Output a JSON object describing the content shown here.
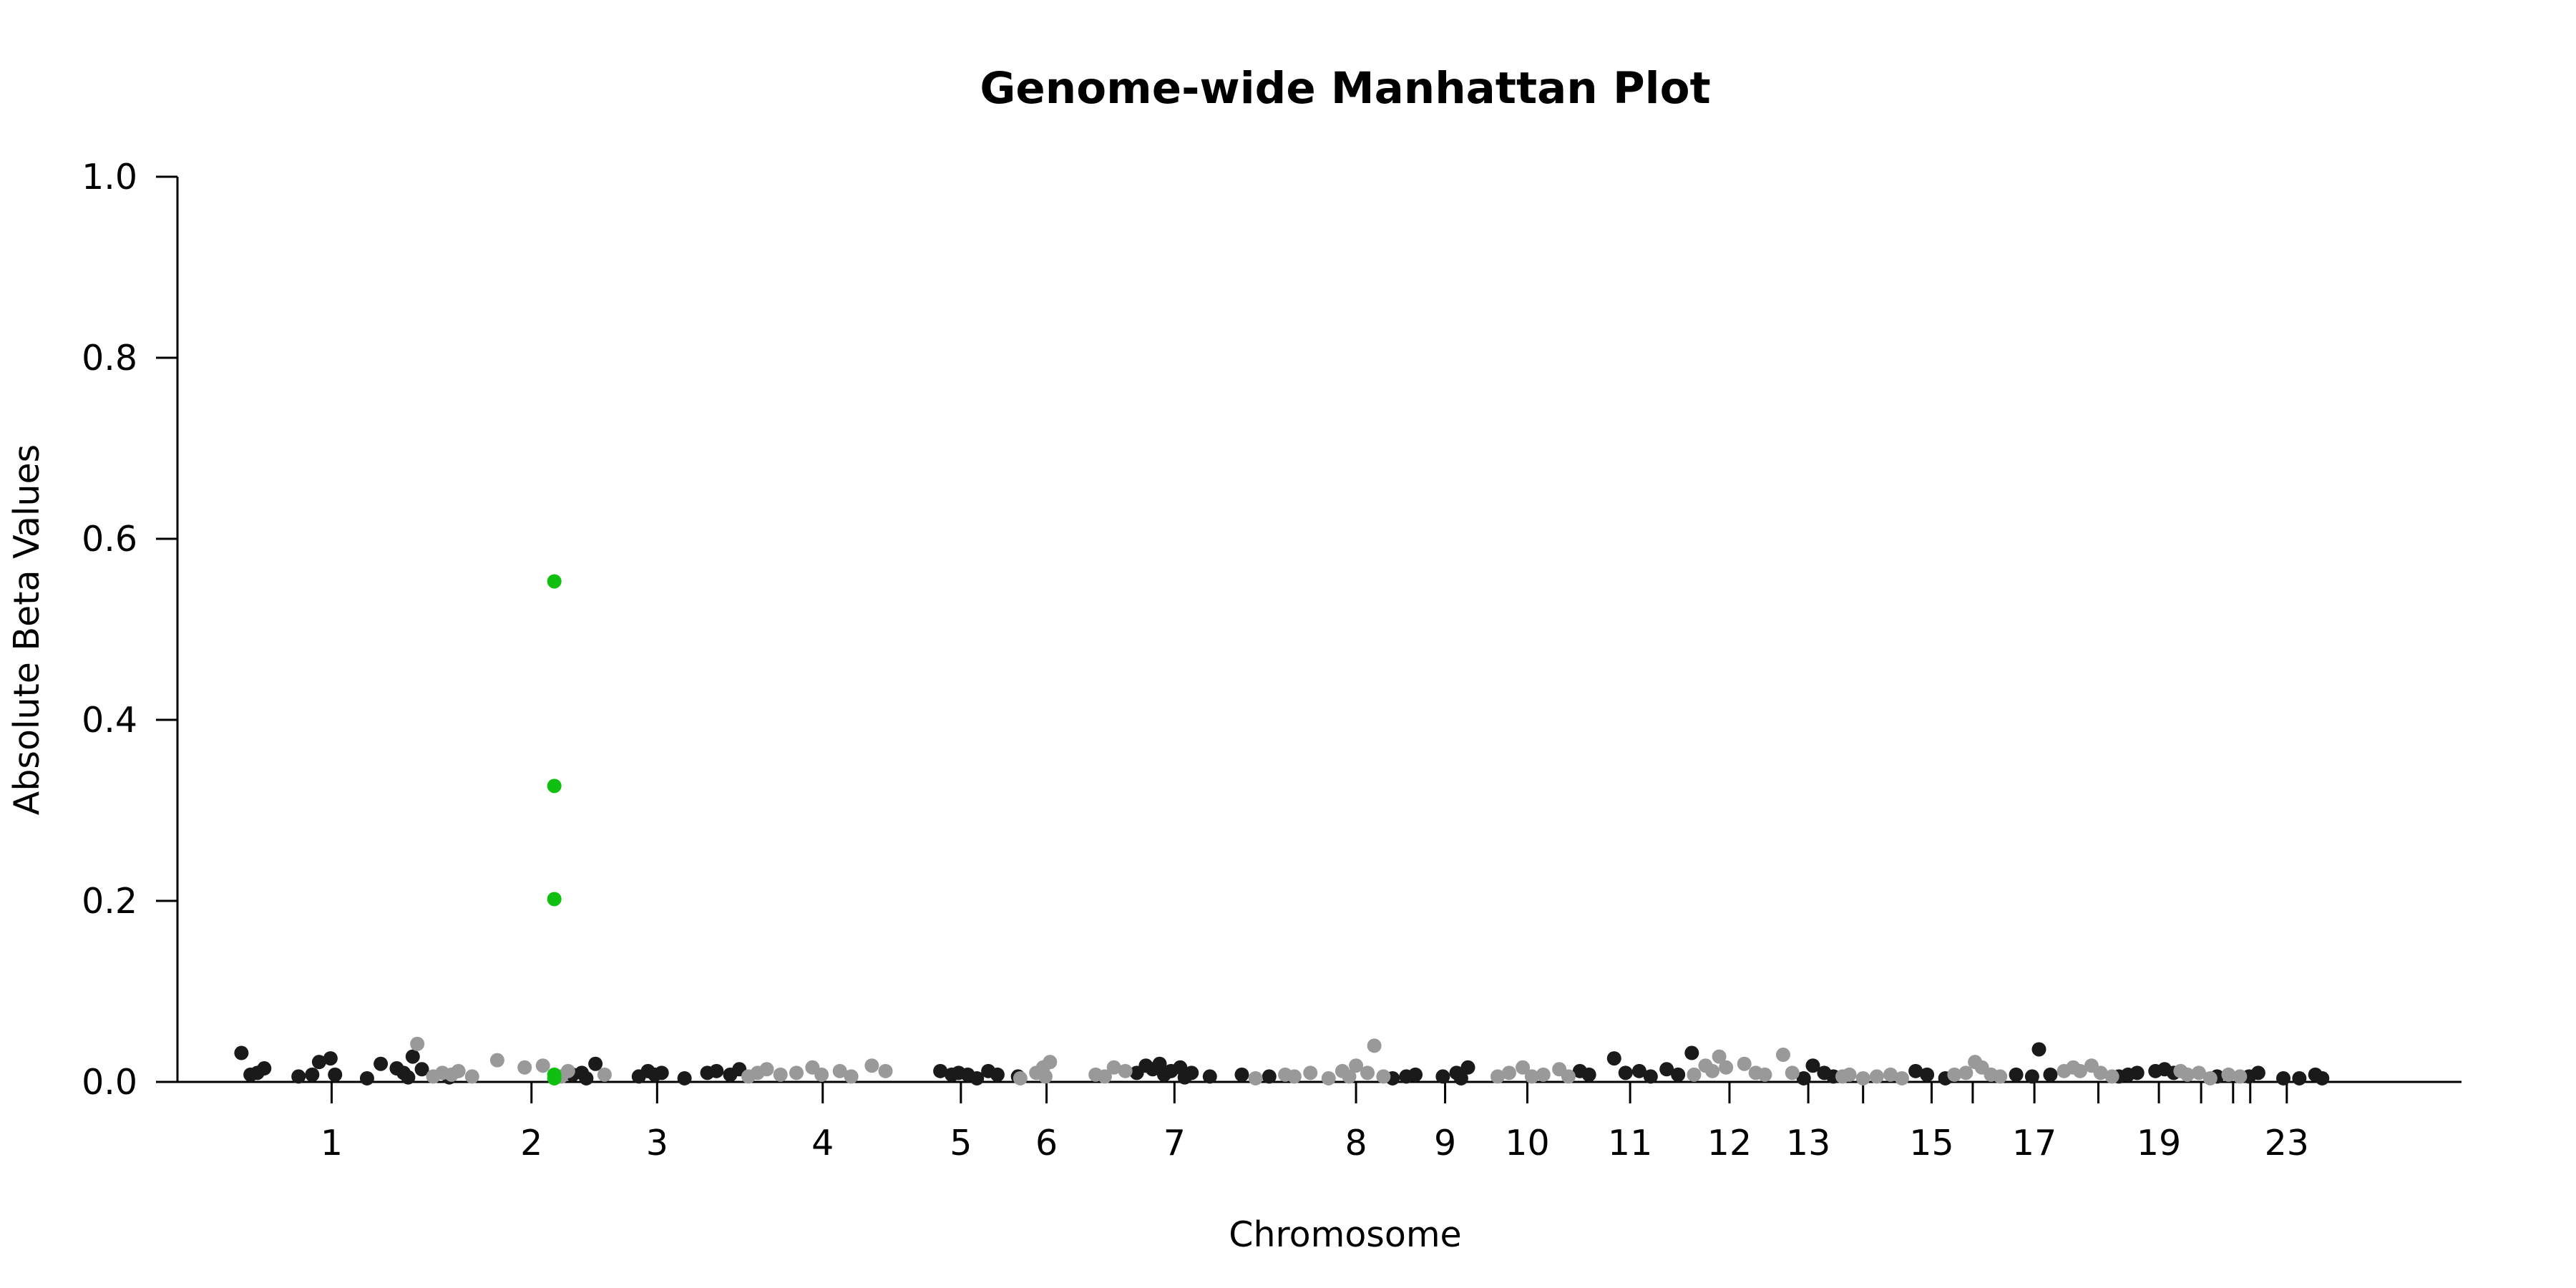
{
  "chart_data": {
    "type": "scatter",
    "title": "Genome-wide Manhattan Plot",
    "xlabel": "Chromosome",
    "ylabel": "Absolute Beta Values",
    "ylim": [
      0,
      1.0
    ],
    "y_ticks": [
      "0.0",
      "0.2",
      "0.4",
      "0.6",
      "0.8",
      "1.0"
    ],
    "grid": false,
    "legend": "none",
    "colors": {
      "dark": "#1a1a1a",
      "light": "#999999",
      "highlight": "#10c010"
    },
    "x_unit": "genomic index",
    "xlim": [
      0,
      100
    ],
    "chromosome_ticks": [
      {
        "label": "1",
        "x": 6.75
      },
      {
        "label": "2",
        "x": 15.5
      },
      {
        "label": "3",
        "x": 21.0
      },
      {
        "label": "4",
        "x": 28.25
      },
      {
        "label": "5",
        "x": 34.3
      },
      {
        "label": "6",
        "x": 38.05
      },
      {
        "label": "7",
        "x": 43.65
      },
      {
        "label": "8",
        "x": 51.6
      },
      {
        "label": "9",
        "x": 55.5
      },
      {
        "label": "10",
        "x": 59.1
      },
      {
        "label": "11",
        "x": 63.6
      },
      {
        "label": "12",
        "x": 67.95
      },
      {
        "label": "13",
        "x": 71.4
      },
      {
        "label": "15",
        "x": 76.8
      },
      {
        "label": "17",
        "x": 81.3
      },
      {
        "label": "19",
        "x": 86.75
      },
      {
        "label": "23",
        "x": 92.35
      }
    ],
    "unlabeled_ticks": [
      73.8,
      78.6,
      84.1,
      88.6,
      90.0,
      90.75
    ],
    "series": [
      {
        "color": "dark",
        "points": [
          [
            2.8,
            0.032
          ],
          [
            3.2,
            0.008
          ],
          [
            3.5,
            0.01
          ],
          [
            3.8,
            0.015
          ],
          [
            5.3,
            0.006
          ],
          [
            5.9,
            0.008
          ],
          [
            6.2,
            0.022
          ],
          [
            6.7,
            0.026
          ],
          [
            6.9,
            0.008
          ],
          [
            8.3,
            0.004
          ],
          [
            8.9,
            0.02
          ],
          [
            9.6,
            0.015
          ],
          [
            9.9,
            0.01
          ],
          [
            10.3,
            0.028
          ],
          [
            10.7,
            0.014
          ],
          [
            10.1,
            0.005
          ],
          [
            11.9,
            0.005
          ],
          [
            17.3,
            0.008
          ],
          [
            17.7,
            0.01
          ],
          [
            17.9,
            0.004
          ],
          [
            18.3,
            0.02
          ],
          [
            20.2,
            0.006
          ],
          [
            20.6,
            0.012
          ],
          [
            20.9,
            0.008
          ],
          [
            21.2,
            0.01
          ],
          [
            22.2,
            0.004
          ],
          [
            23.2,
            0.01
          ],
          [
            23.6,
            0.012
          ],
          [
            24.2,
            0.008
          ],
          [
            24.6,
            0.014
          ],
          [
            33.4,
            0.012
          ],
          [
            33.9,
            0.008
          ],
          [
            34.2,
            0.01
          ],
          [
            34.6,
            0.008
          ],
          [
            35.0,
            0.004
          ],
          [
            35.5,
            0.012
          ],
          [
            35.9,
            0.008
          ],
          [
            36.8,
            0.006
          ],
          [
            42.0,
            0.01
          ],
          [
            42.4,
            0.018
          ],
          [
            42.7,
            0.014
          ],
          [
            43.0,
            0.02
          ],
          [
            43.2,
            0.008
          ],
          [
            43.5,
            0.012
          ],
          [
            43.9,
            0.016
          ],
          [
            44.1,
            0.005
          ],
          [
            44.4,
            0.01
          ],
          [
            45.2,
            0.006
          ],
          [
            46.6,
            0.008
          ],
          [
            47.8,
            0.006
          ],
          [
            53.2,
            0.004
          ],
          [
            53.8,
            0.006
          ],
          [
            54.2,
            0.008
          ],
          [
            55.4,
            0.006
          ],
          [
            56.0,
            0.01
          ],
          [
            56.5,
            0.016
          ],
          [
            56.2,
            0.004
          ],
          [
            61.4,
            0.012
          ],
          [
            61.8,
            0.008
          ],
          [
            62.9,
            0.026
          ],
          [
            63.4,
            0.01
          ],
          [
            64.0,
            0.012
          ],
          [
            64.5,
            0.006
          ],
          [
            65.2,
            0.014
          ],
          [
            65.7,
            0.008
          ],
          [
            66.3,
            0.032
          ],
          [
            71.2,
            0.004
          ],
          [
            71.6,
            0.018
          ],
          [
            72.1,
            0.01
          ],
          [
            72.5,
            0.006
          ],
          [
            76.1,
            0.012
          ],
          [
            76.6,
            0.008
          ],
          [
            77.4,
            0.004
          ],
          [
            80.5,
            0.008
          ],
          [
            81.2,
            0.006
          ],
          [
            81.5,
            0.036
          ],
          [
            82.0,
            0.008
          ],
          [
            85.0,
            0.006
          ],
          [
            85.4,
            0.008
          ],
          [
            85.8,
            0.01
          ],
          [
            86.6,
            0.012
          ],
          [
            87.0,
            0.014
          ],
          [
            87.4,
            0.01
          ],
          [
            89.3,
            0.006
          ],
          [
            90.7,
            0.006
          ],
          [
            91.1,
            0.01
          ],
          [
            92.2,
            0.004
          ],
          [
            92.9,
            0.004
          ],
          [
            93.6,
            0.008
          ],
          [
            93.9,
            0.004
          ]
        ]
      },
      {
        "color": "light",
        "points": [
          [
            10.5,
            0.042
          ],
          [
            11.2,
            0.006
          ],
          [
            11.6,
            0.01
          ],
          [
            12.0,
            0.008
          ],
          [
            12.3,
            0.012
          ],
          [
            12.9,
            0.006
          ],
          [
            14.0,
            0.024
          ],
          [
            15.2,
            0.016
          ],
          [
            16.0,
            0.018
          ],
          [
            16.8,
            0.006
          ],
          [
            17.1,
            0.012
          ],
          [
            18.7,
            0.008
          ],
          [
            25.0,
            0.006
          ],
          [
            25.4,
            0.01
          ],
          [
            25.8,
            0.014
          ],
          [
            26.4,
            0.008
          ],
          [
            27.1,
            0.01
          ],
          [
            27.8,
            0.016
          ],
          [
            28.2,
            0.008
          ],
          [
            29.0,
            0.012
          ],
          [
            29.5,
            0.006
          ],
          [
            30.4,
            0.018
          ],
          [
            31.0,
            0.012
          ],
          [
            36.9,
            0.004
          ],
          [
            37.6,
            0.01
          ],
          [
            37.9,
            0.016
          ],
          [
            38.2,
            0.022
          ],
          [
            38.0,
            0.006
          ],
          [
            40.2,
            0.008
          ],
          [
            40.6,
            0.006
          ],
          [
            41.0,
            0.016
          ],
          [
            41.5,
            0.012
          ],
          [
            47.2,
            0.004
          ],
          [
            48.5,
            0.008
          ],
          [
            48.9,
            0.006
          ],
          [
            49.6,
            0.01
          ],
          [
            50.4,
            0.004
          ],
          [
            51.0,
            0.012
          ],
          [
            51.3,
            0.006
          ],
          [
            51.6,
            0.018
          ],
          [
            52.1,
            0.01
          ],
          [
            52.4,
            0.04
          ],
          [
            52.8,
            0.006
          ],
          [
            57.8,
            0.006
          ],
          [
            58.3,
            0.01
          ],
          [
            58.9,
            0.016
          ],
          [
            59.3,
            0.006
          ],
          [
            59.8,
            0.008
          ],
          [
            60.5,
            0.014
          ],
          [
            60.9,
            0.006
          ],
          [
            66.4,
            0.008
          ],
          [
            66.9,
            0.018
          ],
          [
            67.2,
            0.012
          ],
          [
            67.5,
            0.028
          ],
          [
            67.8,
            0.016
          ],
          [
            68.6,
            0.02
          ],
          [
            69.1,
            0.01
          ],
          [
            69.5,
            0.008
          ],
          [
            70.3,
            0.03
          ],
          [
            70.7,
            0.01
          ],
          [
            72.9,
            0.006
          ],
          [
            73.2,
            0.008
          ],
          [
            73.8,
            0.004
          ],
          [
            74.4,
            0.006
          ],
          [
            75.0,
            0.008
          ],
          [
            75.5,
            0.004
          ],
          [
            77.8,
            0.008
          ],
          [
            78.3,
            0.01
          ],
          [
            78.7,
            0.022
          ],
          [
            79.0,
            0.016
          ],
          [
            79.4,
            0.008
          ],
          [
            79.8,
            0.006
          ],
          [
            82.6,
            0.012
          ],
          [
            83.0,
            0.016
          ],
          [
            83.3,
            0.012
          ],
          [
            83.8,
            0.018
          ],
          [
            84.2,
            0.01
          ],
          [
            84.7,
            0.006
          ],
          [
            87.7,
            0.012
          ],
          [
            88.0,
            0.008
          ],
          [
            88.5,
            0.01
          ],
          [
            89.0,
            0.004
          ],
          [
            89.8,
            0.008
          ],
          [
            90.3,
            0.006
          ]
        ]
      },
      {
        "color": "highlight",
        "points": [
          [
            16.5,
            0.553
          ],
          [
            16.5,
            0.327
          ],
          [
            16.5,
            0.202
          ],
          [
            16.5,
            0.008
          ],
          [
            16.5,
            0.004
          ]
        ]
      }
    ]
  }
}
